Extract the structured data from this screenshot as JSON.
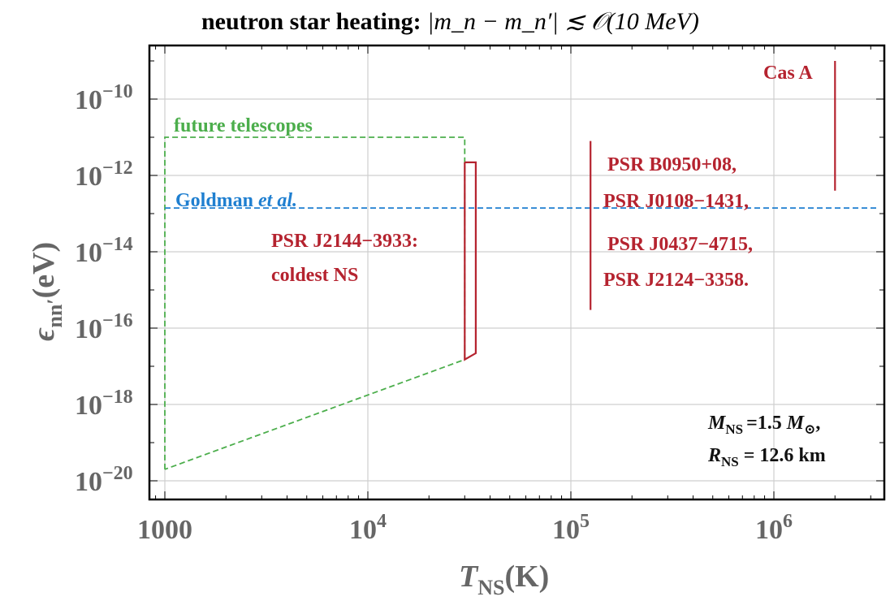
{
  "chart_data": {
    "type": "line",
    "title": "neutron star heating:",
    "title_math": "|m_n − m_n′| ≲ 𝒪(10 MeV)",
    "xlabel": "T_NS(K)",
    "ylabel": "ε_nn′(eV)",
    "xscale": "log",
    "yscale": "log",
    "xlim": [
      850,
      3300000
    ],
    "ylim": [
      1e-20,
      1e-09
    ],
    "grid": true,
    "x_ticks": [
      {
        "value": 1000,
        "label": "1000"
      },
      {
        "value": 10000,
        "label": "10^4"
      },
      {
        "value": 100000,
        "label": "10^5"
      },
      {
        "value": 1000000,
        "label": "10^6"
      }
    ],
    "y_ticks": [
      {
        "value": 1e-10,
        "label": "10^−10"
      },
      {
        "value": 1e-12,
        "label": "10^−12"
      },
      {
        "value": 1e-14,
        "label": "10^−14"
      },
      {
        "value": 1e-16,
        "label": "10^−16"
      },
      {
        "value": 1e-18,
        "label": "10^−18"
      },
      {
        "value": 1e-20,
        "label": "10^−20"
      }
    ],
    "series": [
      {
        "name": "future telescopes",
        "style": "dashed",
        "color": "#4cae4c",
        "points": [
          [
            1000,
            2e-20
          ],
          [
            1000,
            1e-11
          ],
          [
            30000,
            1e-11
          ],
          [
            30000,
            1.5e-17
          ],
          [
            1000,
            2e-20
          ]
        ]
      },
      {
        "name": "Goldman et al.",
        "style": "dashed",
        "color": "#1f7fd0",
        "points": [
          [
            1000,
            1.4e-13
          ],
          [
            3300000,
            1.4e-13
          ]
        ]
      },
      {
        "name": "PSR J2144−3933: coldest NS",
        "style": "solid",
        "color": "#b5232f",
        "points": [
          [
            30000,
            2.2e-12
          ],
          [
            34000,
            2.2e-12
          ],
          [
            34000,
            2.2e-17
          ],
          [
            30000,
            1.5e-17
          ],
          [
            30000,
            2.2e-12
          ]
        ]
      },
      {
        "name": "PSR B0950+08, PSR J0108−1431, PSR J0437−4715, PSR J2124−3358.",
        "style": "solid",
        "color": "#b5232f",
        "points": [
          [
            125000,
            8e-12
          ],
          [
            125000,
            3e-16
          ]
        ]
      },
      {
        "name": "Cas A",
        "style": "solid",
        "color": "#b5232f",
        "points": [
          [
            2000000,
            1e-09
          ],
          [
            2000000,
            4e-13
          ]
        ]
      }
    ],
    "annotations": {
      "future_telescopes": "future telescopes",
      "goldman_prefix": "Goldman",
      "goldman_italic": "et al.",
      "j2144_line1": "PSR J2144−3933:",
      "j2144_line2": "coldest NS",
      "psr_line1": "PSR B0950+08,",
      "psr_line2": "PSR J0108−1431,",
      "psr_line3": "PSR J0437−4715,",
      "psr_line4": "PSR J2124−3358.",
      "cas_a": "Cas A",
      "mass_label": "M",
      "mass_sub": "NS",
      "mass_value": "=1.5",
      "mass_sun": "M",
      "mass_sun_sub": "⊙",
      "radius_label": "R",
      "radius_sub": "NS",
      "radius_value": "= 12.6 km"
    }
  }
}
